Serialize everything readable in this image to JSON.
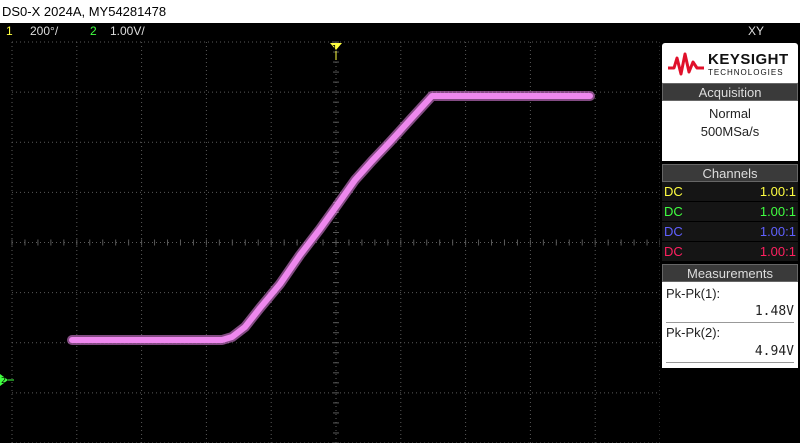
{
  "title": "DS0-X 2024A, MY54281478",
  "status": {
    "ch1_num": "1",
    "ch1_scale": "200°/",
    "ch2_num": "2",
    "ch2_scale": "1.00V/",
    "mode": "XY"
  },
  "colors": {
    "ch1": "#ffff40",
    "ch2": "#40ff40",
    "ch3": "#6060ff",
    "ch4": "#ff2060",
    "trace": "#ee88ee",
    "grid": "#5a5a5a",
    "logo_red": "#e0102a"
  },
  "brand": {
    "name": "KEYSIGHT",
    "sub": "TECHNOLOGIES"
  },
  "acquisition": {
    "header": "Acquisition",
    "mode": "Normal",
    "rate": "500MSa/s"
  },
  "channels": {
    "header": "Channels",
    "rows": [
      {
        "coupling": "DC",
        "ratio": "1.00:1"
      },
      {
        "coupling": "DC",
        "ratio": "1.00:1"
      },
      {
        "coupling": "DC",
        "ratio": "1.00:1"
      },
      {
        "coupling": "DC",
        "ratio": "1.00:1"
      }
    ]
  },
  "measurements": {
    "header": "Measurements",
    "m1_label": "Pk-Pk(1):",
    "m1_value": "1.48V",
    "m2_label": "Pk-Pk(2):",
    "m2_value": "4.94V"
  },
  "markers": {
    "top": "1",
    "left": "2"
  },
  "icons": {
    "logo": "keysight-wave-icon",
    "trigger": "channel1-marker-icon",
    "ground": "channel2-marker-icon"
  }
}
